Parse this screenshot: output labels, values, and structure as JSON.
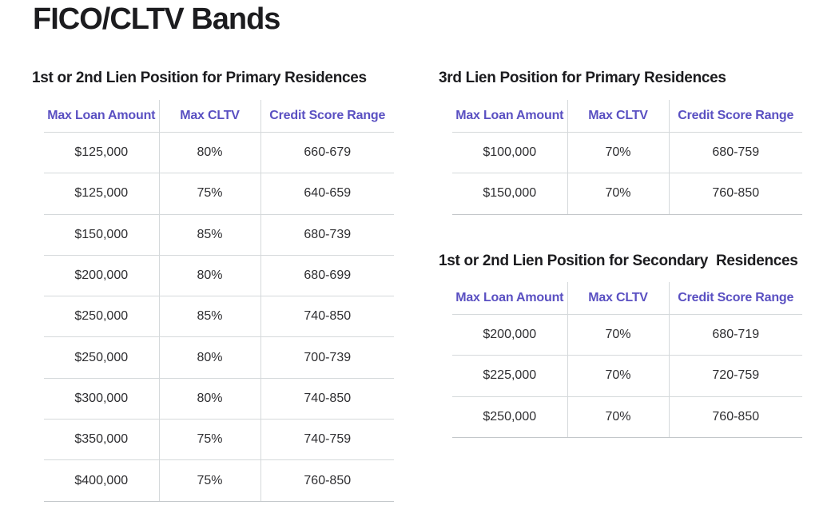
{
  "page": {
    "title": "FICO/CLTV Bands",
    "colors": {
      "bg": "#ffffff",
      "ink": "#1c1c1f",
      "accent": "#5a50c2",
      "cell": "#2e2e31",
      "grid": "#d5d9db",
      "grid-strong": "#c3c7ca"
    }
  },
  "tables": [
    {
      "title": "1st or 2nd Lien Position for Primary Residences",
      "columns": [
        "Max Loan Amount",
        "Max CLTV",
        "Credit Score Range"
      ],
      "rows": [
        [
          "$125,000",
          "80%",
          "660-679"
        ],
        [
          "$125,000",
          "75%",
          "640-659"
        ],
        [
          "$150,000",
          "85%",
          "680-739"
        ],
        [
          "$200,000",
          "80%",
          "680-699"
        ],
        [
          "$250,000",
          "85%",
          "740-850"
        ],
        [
          "$250,000",
          "80%",
          "700-739"
        ],
        [
          "$300,000",
          "80%",
          "740-850"
        ],
        [
          "$350,000",
          "75%",
          "740-759"
        ],
        [
          "$400,000",
          "75%",
          "760-850"
        ]
      ]
    },
    {
      "title": "3rd Lien Position for Primary Residences",
      "columns": [
        "Max Loan Amount",
        "Max CLTV",
        "Credit Score Range"
      ],
      "rows": [
        [
          "$100,000",
          "70%",
          "680-759"
        ],
        [
          "$150,000",
          "70%",
          "760-850"
        ]
      ]
    },
    {
      "title": "1st or 2nd Lien Position for Secondary  Residences",
      "columns": [
        "Max Loan Amount",
        "Max CLTV",
        "Credit Score Range"
      ],
      "rows": [
        [
          "$200,000",
          "70%",
          "680-719"
        ],
        [
          "$225,000",
          "70%",
          "720-759"
        ],
        [
          "$250,000",
          "70%",
          "760-850"
        ]
      ]
    }
  ]
}
